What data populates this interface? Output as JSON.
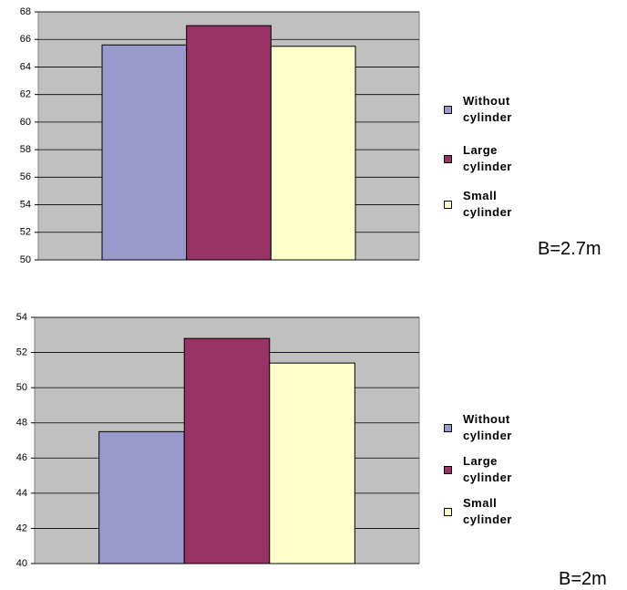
{
  "chart_data": [
    {
      "type": "bar",
      "categories": [
        null
      ],
      "series": [
        {
          "name": "Without cylinder",
          "color": "#9999cc",
          "values": [
            65.6
          ]
        },
        {
          "name": "Large cylinder",
          "color": "#993366",
          "values": [
            67.0
          ]
        },
        {
          "name": "Small cylinder",
          "color": "#ffffcc",
          "values": [
            65.5
          ]
        }
      ],
      "ylim": [
        50,
        68
      ],
      "yticks": [
        50,
        52,
        54,
        56,
        58,
        60,
        62,
        64,
        66,
        68
      ],
      "grid": true,
      "annotation": "B=2.7m"
    },
    {
      "type": "bar",
      "categories": [
        null
      ],
      "series": [
        {
          "name": "Without cylinder",
          "color": "#9999cc",
          "values": [
            47.5
          ]
        },
        {
          "name": "Large cylinder",
          "color": "#993366",
          "values": [
            52.8
          ]
        },
        {
          "name": "Small cylinder",
          "color": "#ffffcc",
          "values": [
            51.4
          ]
        }
      ],
      "ylim": [
        40,
        54
      ],
      "yticks": [
        40,
        42,
        44,
        46,
        48,
        50,
        52,
        54
      ],
      "grid": true,
      "annotation": "B=2m"
    }
  ]
}
